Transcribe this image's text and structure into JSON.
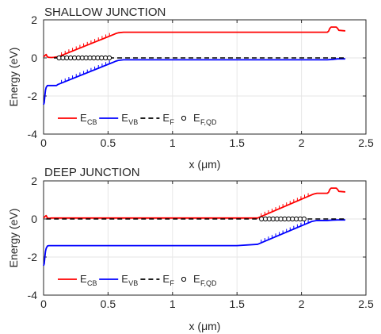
{
  "chart_data": [
    {
      "type": "line",
      "title": "SHALLOW JUNCTION",
      "xlabel": "x (μm)",
      "ylabel": "Energy (eV)",
      "xlim": [
        0,
        2.5
      ],
      "ylim": [
        -4,
        2
      ],
      "xticks": [
        "0",
        "0.5",
        "1",
        "1.5",
        "2",
        "2.5"
      ],
      "yticks": [
        "2",
        "0",
        "-2",
        "-4"
      ],
      "grid": true,
      "legend_position": "bottom-left",
      "legend": [
        {
          "main": "E",
          "sub": "CB",
          "style": "red-solid"
        },
        {
          "main": "E",
          "sub": "VB",
          "style": "blue-solid"
        },
        {
          "main": "E",
          "sub": "F",
          "style": "black-dashed"
        },
        {
          "main": "E",
          "sub": "F,QD",
          "style": "black-circle"
        }
      ],
      "series": [
        {
          "name": "E_CB",
          "color": "#ff0000",
          "x": [
            0,
            0.01,
            0.02,
            0.03,
            0.04,
            0.06,
            0.08,
            0.1,
            0.11,
            0.54,
            0.56,
            0.58,
            0.62,
            0.7,
            1.0,
            1.5,
            2.0,
            2.2,
            2.21,
            2.22,
            2.23,
            2.27,
            2.28,
            2.29,
            2.34
          ],
          "y": [
            0.05,
            0.12,
            0.18,
            0.05,
            0.03,
            0.02,
            0.03,
            0.05,
            0.05,
            1.22,
            1.28,
            1.32,
            1.35,
            1.35,
            1.35,
            1.35,
            1.35,
            1.35,
            1.4,
            1.55,
            1.62,
            1.62,
            1.55,
            1.45,
            1.42
          ]
        },
        {
          "name": "E_VB",
          "color": "#0000ff",
          "x": [
            0,
            0.005,
            0.01,
            0.015,
            0.02,
            0.03,
            0.04,
            0.06,
            0.08,
            0.1,
            0.11,
            0.54,
            0.56,
            0.58,
            0.62,
            0.7,
            1.0,
            1.5,
            2.0,
            2.2,
            2.24,
            2.28,
            2.34
          ],
          "y": [
            -2.45,
            -2.35,
            -2.0,
            -1.7,
            -1.55,
            -1.45,
            -1.45,
            -1.45,
            -1.45,
            -1.45,
            -1.4,
            -0.23,
            -0.17,
            -0.13,
            -0.1,
            -0.1,
            -0.1,
            -0.1,
            -0.1,
            -0.1,
            -0.08,
            -0.05,
            -0.05
          ]
        },
        {
          "name": "E_F",
          "color": "#000000",
          "dashed": true,
          "x": [
            0.08,
            2.34
          ],
          "y": [
            0.0,
            0.0
          ]
        },
        {
          "name": "E_F,QD",
          "color": "#000000",
          "marker": "circle",
          "x": [
            0.12,
            0.15,
            0.18,
            0.21,
            0.24,
            0.27,
            0.3,
            0.33,
            0.36,
            0.39,
            0.42,
            0.45,
            0.48,
            0.51
          ],
          "y": [
            0,
            0,
            0,
            0,
            0,
            0,
            0,
            0,
            0,
            0,
            0,
            0,
            0,
            0
          ]
        }
      ]
    },
    {
      "type": "line",
      "title": "DEEP JUNCTION",
      "xlabel": "x (μm)",
      "ylabel": "Energy (eV)",
      "xlim": [
        0,
        2.5
      ],
      "ylim": [
        -4,
        2
      ],
      "xticks": [
        "0",
        "0.5",
        "1",
        "1.5",
        "2",
        "2.5"
      ],
      "yticks": [
        "2",
        "0",
        "-2",
        "-4"
      ],
      "grid": true,
      "legend_position": "bottom-left",
      "legend": [
        {
          "main": "E",
          "sub": "CB",
          "style": "red-solid"
        },
        {
          "main": "E",
          "sub": "VB",
          "style": "blue-solid"
        },
        {
          "main": "E",
          "sub": "F",
          "style": "black-dashed"
        },
        {
          "main": "E",
          "sub": "F,QD",
          "style": "black-circle"
        }
      ],
      "series": [
        {
          "name": "E_CB",
          "color": "#ff0000",
          "x": [
            0,
            0.01,
            0.02,
            0.03,
            0.04,
            0.06,
            0.1,
            0.5,
            1.0,
            1.5,
            1.66,
            2.08,
            2.1,
            2.12,
            2.16,
            2.2,
            2.21,
            2.22,
            2.23,
            2.27,
            2.28,
            2.29,
            2.34
          ],
          "y": [
            0.05,
            0.12,
            0.18,
            0.05,
            0.03,
            0.05,
            0.05,
            0.05,
            0.05,
            0.05,
            0.05,
            1.27,
            1.32,
            1.35,
            1.35,
            1.35,
            1.4,
            1.55,
            1.62,
            1.62,
            1.55,
            1.45,
            1.42
          ]
        },
        {
          "name": "E_VB",
          "color": "#0000ff",
          "x": [
            0,
            0.005,
            0.01,
            0.015,
            0.02,
            0.03,
            0.04,
            0.1,
            0.5,
            1.0,
            1.5,
            1.66,
            2.08,
            2.12,
            2.2,
            2.24,
            2.28,
            2.34
          ],
          "y": [
            -2.45,
            -2.35,
            -2.0,
            -1.7,
            -1.55,
            -1.42,
            -1.4,
            -1.4,
            -1.4,
            -1.4,
            -1.4,
            -1.33,
            -0.13,
            -0.08,
            -0.08,
            -0.06,
            -0.05,
            -0.05
          ]
        },
        {
          "name": "E_F",
          "color": "#000000",
          "dashed": true,
          "x": [
            0.02,
            2.34
          ],
          "y": [
            0.0,
            0.0
          ]
        },
        {
          "name": "E_F,QD",
          "color": "#000000",
          "marker": "circle",
          "x": [
            1.69,
            1.72,
            1.75,
            1.78,
            1.81,
            1.84,
            1.87,
            1.9,
            1.93,
            1.96,
            1.99,
            2.02
          ],
          "y": [
            0,
            0,
            0,
            0,
            0,
            0,
            0,
            0,
            0,
            0,
            0,
            0
          ]
        }
      ]
    }
  ]
}
